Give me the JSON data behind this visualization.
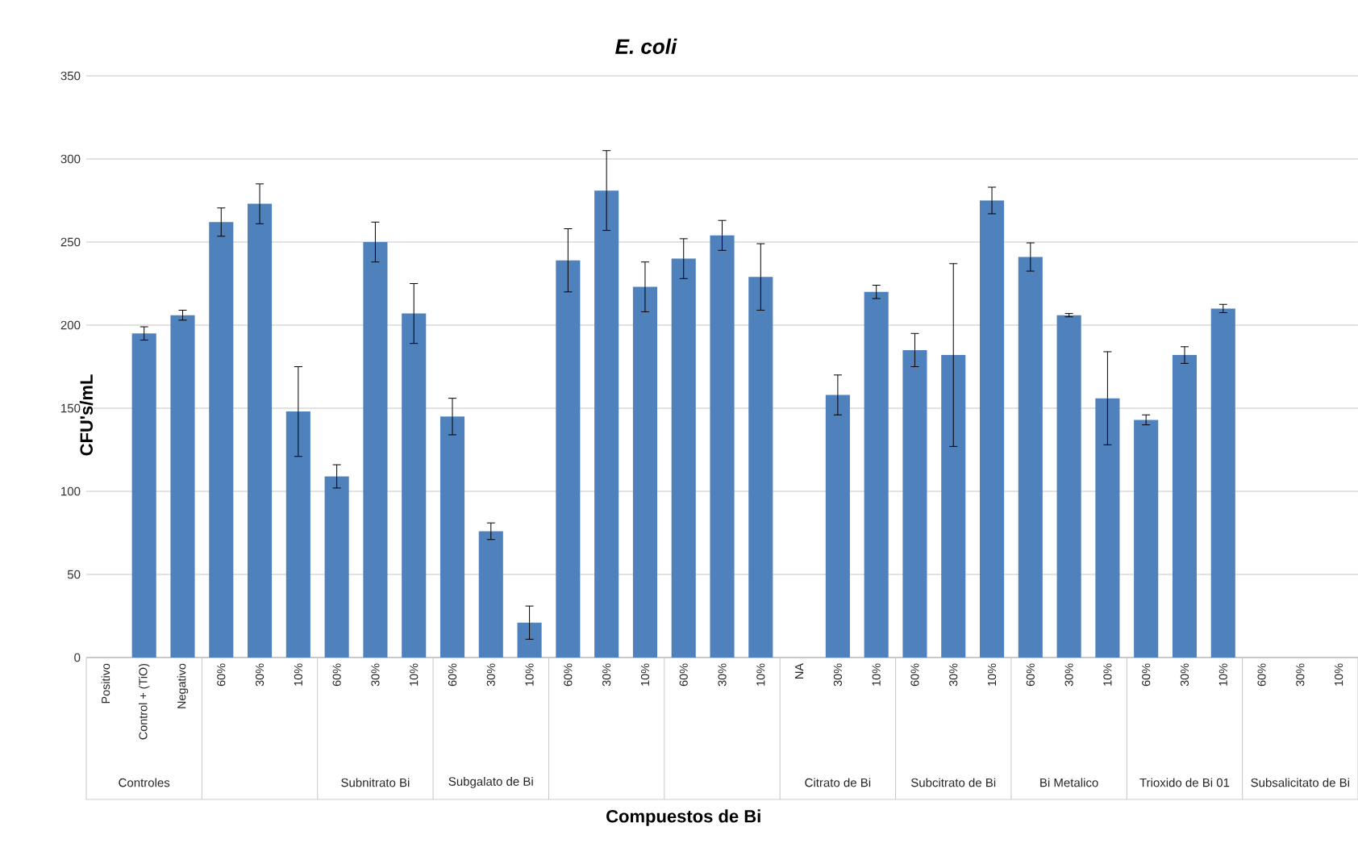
{
  "chart_data": {
    "type": "bar",
    "title": "E. coli",
    "xlabel": "Compuestos de Bi",
    "ylabel": "CFU's/mL",
    "categories": [
      "Positivo",
      "Control + (TiO)",
      "Negativo",
      "60%",
      "30%",
      "10%",
      "60%",
      "30%",
      "10%",
      "60%",
      "30%",
      "10%",
      "60%",
      "30%",
      "10%",
      "60%",
      "30%",
      "10%",
      "NA",
      "30%",
      "10%",
      "60%",
      "30%",
      "10%",
      "60%",
      "30%",
      "10%",
      "60%",
      "30%",
      "10%",
      "60%",
      "30%",
      "10%"
    ],
    "values": [
      null,
      195,
      206,
      262,
      273,
      148,
      109,
      250,
      207,
      145,
      76,
      21,
      239,
      281,
      223,
      240,
      254,
      229,
      null,
      158,
      220,
      185,
      182,
      275,
      241,
      206,
      156,
      143,
      182,
      210,
      null,
      null,
      null
    ],
    "errors": [
      null,
      4,
      3,
      8.5,
      12,
      27,
      7,
      12,
      18,
      11,
      5,
      10,
      19,
      24,
      15,
      12,
      9,
      20,
      null,
      12,
      4,
      10,
      55,
      8,
      8.5,
      1,
      28,
      3,
      5,
      2.5,
      null,
      null,
      null
    ],
    "color": "#4f81bd",
    "ylim": [
      0,
      350
    ],
    "yticks": [
      0,
      50,
      100,
      150,
      200,
      250,
      300,
      350
    ],
    "grid": "y",
    "annotations": [
      "Controles",
      "Subnitrato Bi",
      "Subgalato de Bi",
      "Citrato de Bi",
      "Subcitrato de Bi",
      "Bi Metalico",
      "Trioxido de Bi 01",
      "Subsalicitato de Bi"
    ]
  }
}
